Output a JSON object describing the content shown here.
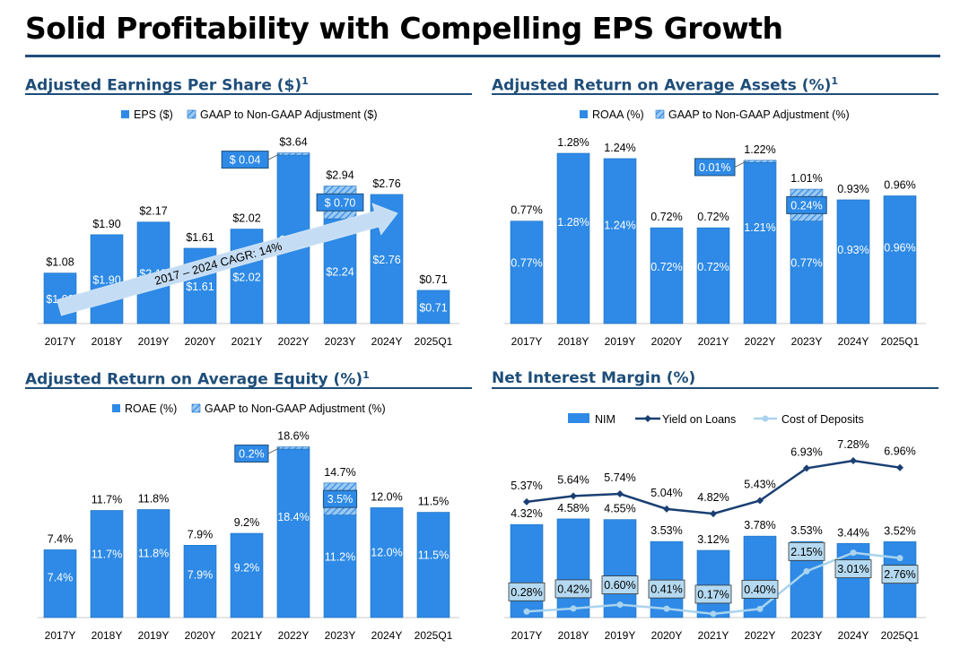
{
  "page": {
    "title": "Solid Profitability with Compelling EPS Growth",
    "colors": {
      "bar": "#2e8ae6",
      "bar_stroke": "#1a6fc0",
      "navy": "#1f4e79",
      "yield_line": "#1a3f73",
      "cost_line": "#a9d3ee",
      "cost_box": "#b4d9f0",
      "arrow": "#c5ddf4"
    }
  },
  "chart_data": [
    {
      "id": "eps",
      "type": "bar",
      "title": "Adjusted Earnings Per Share ($)",
      "title_sup": "1",
      "legend": [
        "EPS ($)",
        "GAAP to Non-GAAP Adjustment ($)"
      ],
      "categories": [
        "2017Y",
        "2018Y",
        "2019Y",
        "2020Y",
        "2021Y",
        "2022Y",
        "2023Y",
        "2024Y",
        "2025Q1"
      ],
      "series": [
        {
          "name": "EPS ($)",
          "values": [
            1.08,
            1.9,
            2.17,
            1.61,
            2.02,
            3.6,
            2.24,
            2.76,
            0.71
          ],
          "labels": [
            "$1.08",
            "$1.90",
            "$2.17",
            "$1.61",
            "$2.02",
            "$3.60",
            "$2.24",
            "$2.76",
            "$0.71"
          ]
        },
        {
          "name": "GAAP to Non-GAAP Adjustment ($)",
          "values": [
            0,
            0,
            0,
            0,
            0,
            0.04,
            0.7,
            0,
            0
          ],
          "labels": [
            "",
            "",
            "",
            "",
            "",
            "$ 0.04",
            "$ 0.70",
            "",
            ""
          ]
        }
      ],
      "totals": [
        "$1.08",
        "$1.90",
        "$2.17",
        "$1.61",
        "$2.02",
        "$3.64",
        "$2.94",
        "$2.76",
        "$0.71"
      ],
      "ylim": [
        0,
        3.64
      ],
      "annotation": "2017 – 2024 CAGR: 14%"
    },
    {
      "id": "roaa",
      "type": "bar",
      "title": "Adjusted Return on Average Assets (%)",
      "title_sup": "1",
      "legend": [
        "ROAA (%)",
        "GAAP to Non-GAAP Adjustment (%)"
      ],
      "categories": [
        "2017Y",
        "2018Y",
        "2019Y",
        "2020Y",
        "2021Y",
        "2022Y",
        "2023Y",
        "2024Y",
        "2025Q1"
      ],
      "series": [
        {
          "name": "ROAA (%)",
          "values": [
            0.77,
            1.28,
            1.24,
            0.72,
            0.72,
            1.21,
            0.77,
            0.93,
            0.96
          ],
          "labels": [
            "0.77%",
            "1.28%",
            "1.24%",
            "0.72%",
            "0.72%",
            "1.21%",
            "0.77%",
            "0.93%",
            "0.96%"
          ]
        },
        {
          "name": "GAAP to Non-GAAP Adjustment (%)",
          "values": [
            0,
            0,
            0,
            0,
            0,
            0.01,
            0.24,
            0,
            0
          ],
          "labels": [
            "",
            "",
            "",
            "",
            "",
            "0.01%",
            "0.24%",
            "",
            ""
          ]
        }
      ],
      "totals": [
        "0.77%",
        "1.28%",
        "1.24%",
        "0.72%",
        "0.72%",
        "1.22%",
        "1.01%",
        "0.93%",
        "0.96%"
      ],
      "ylim": [
        0,
        1.28
      ]
    },
    {
      "id": "roae",
      "type": "bar",
      "title": "Adjusted Return on Average Equity (%)",
      "title_sup": "1",
      "legend": [
        "ROAE (%)",
        "GAAP to Non-GAAP Adjustment (%)"
      ],
      "categories": [
        "2017Y",
        "2018Y",
        "2019Y",
        "2020Y",
        "2021Y",
        "2022Y",
        "2023Y",
        "2024Y",
        "2025Q1"
      ],
      "series": [
        {
          "name": "ROAE (%)",
          "values": [
            7.4,
            11.7,
            11.8,
            7.9,
            9.2,
            18.4,
            11.2,
            12.0,
            11.5
          ],
          "labels": [
            "7.4%",
            "11.7%",
            "11.8%",
            "7.9%",
            "9.2%",
            "18.4%",
            "11.2%",
            "12.0%",
            "11.5%"
          ]
        },
        {
          "name": "GAAP to Non-GAAP Adjustment (%)",
          "values": [
            0,
            0,
            0,
            0,
            0,
            0.2,
            3.5,
            0,
            0
          ],
          "labels": [
            "",
            "",
            "",
            "",
            "",
            "0.2%",
            "3.5%",
            "",
            ""
          ]
        }
      ],
      "totals": [
        "7.4%",
        "11.7%",
        "11.8%",
        "7.9%",
        "9.2%",
        "18.6%",
        "14.7%",
        "12.0%",
        "11.5%"
      ],
      "ylim": [
        0,
        18.6
      ]
    },
    {
      "id": "nim",
      "type": "bar",
      "title": "Net Interest Margin (%)",
      "legend": [
        "NIM",
        "Yield on Loans",
        "Cost of Deposits"
      ],
      "categories": [
        "2017Y",
        "2018Y",
        "2019Y",
        "2020Y",
        "2021Y",
        "2022Y",
        "2023Y",
        "2024Y",
        "2025Q1"
      ],
      "series": [
        {
          "name": "NIM",
          "kind": "bar",
          "values": [
            4.32,
            4.58,
            4.55,
            3.53,
            3.12,
            3.78,
            3.53,
            3.44,
            3.52
          ],
          "labels": [
            "4.32%",
            "4.58%",
            "4.55%",
            "3.53%",
            "3.12%",
            "3.78%",
            "3.53%",
            "3.44%",
            "3.52%"
          ]
        },
        {
          "name": "Yield on Loans",
          "kind": "line",
          "values": [
            5.37,
            5.64,
            5.74,
            5.04,
            4.82,
            5.43,
            6.93,
            7.28,
            6.96
          ],
          "labels": [
            "5.37%",
            "5.64%",
            "5.74%",
            "5.04%",
            "4.82%",
            "5.43%",
            "6.93%",
            "7.28%",
            "6.96%"
          ]
        },
        {
          "name": "Cost of Deposits",
          "kind": "line",
          "values": [
            0.28,
            0.42,
            0.6,
            0.41,
            0.17,
            0.4,
            2.15,
            3.01,
            2.76
          ],
          "labels": [
            "0.28%",
            "0.42%",
            "0.60%",
            "0.41%",
            "0.17%",
            "0.40%",
            "2.15%",
            "3.01%",
            "2.76%"
          ]
        }
      ],
      "ylim": [
        0,
        7.28
      ]
    }
  ]
}
